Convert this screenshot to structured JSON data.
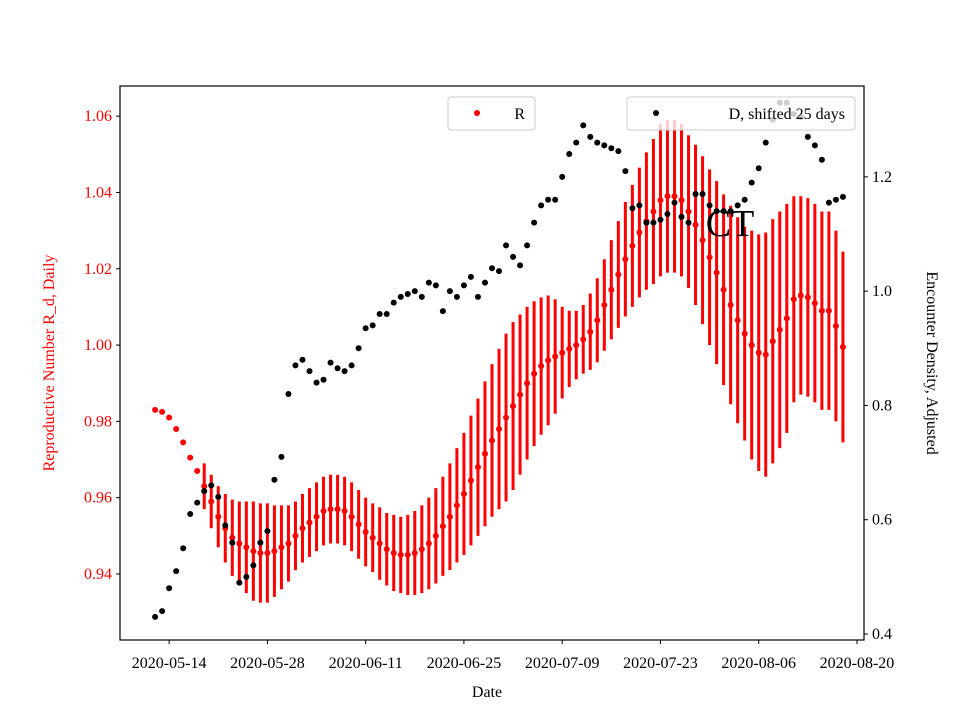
{
  "chart_data": {
    "type": "errorbar_dual",
    "x_label": "Date",
    "y_label": "Reproductive Number R_d, Daily",
    "y2_label": "Encounter Density, Adjusted",
    "annotation": "CT",
    "x": [
      "2020-05-12",
      "2020-05-13",
      "2020-05-14",
      "2020-05-15",
      "2020-05-16",
      "2020-05-17",
      "2020-05-18",
      "2020-05-19",
      "2020-05-20",
      "2020-05-21",
      "2020-05-22",
      "2020-05-23",
      "2020-05-24",
      "2020-05-25",
      "2020-05-26",
      "2020-05-27",
      "2020-05-28",
      "2020-05-29",
      "2020-05-30",
      "2020-05-31",
      "2020-06-01",
      "2020-06-02",
      "2020-06-03",
      "2020-06-04",
      "2020-06-05",
      "2020-06-06",
      "2020-06-07",
      "2020-06-08",
      "2020-06-09",
      "2020-06-10",
      "2020-06-11",
      "2020-06-12",
      "2020-06-13",
      "2020-06-14",
      "2020-06-15",
      "2020-06-16",
      "2020-06-17",
      "2020-06-18",
      "2020-06-19",
      "2020-06-20",
      "2020-06-21",
      "2020-06-22",
      "2020-06-23",
      "2020-06-24",
      "2020-06-25",
      "2020-06-26",
      "2020-06-27",
      "2020-06-28",
      "2020-06-29",
      "2020-06-30",
      "2020-07-01",
      "2020-07-02",
      "2020-07-03",
      "2020-07-04",
      "2020-07-05",
      "2020-07-06",
      "2020-07-07",
      "2020-07-08",
      "2020-07-09",
      "2020-07-10",
      "2020-07-11",
      "2020-07-12",
      "2020-07-13",
      "2020-07-14",
      "2020-07-15",
      "2020-07-16",
      "2020-07-17",
      "2020-07-18",
      "2020-07-19",
      "2020-07-20",
      "2020-07-21",
      "2020-07-22",
      "2020-07-23",
      "2020-07-24",
      "2020-07-25",
      "2020-07-26",
      "2020-07-27",
      "2020-07-28",
      "2020-07-29",
      "2020-07-30",
      "2020-07-31",
      "2020-08-01",
      "2020-08-02",
      "2020-08-03",
      "2020-08-04",
      "2020-08-05",
      "2020-08-06",
      "2020-08-07",
      "2020-08-08",
      "2020-08-09",
      "2020-08-10",
      "2020-08-11",
      "2020-08-12",
      "2020-08-13",
      "2020-08-14",
      "2020-08-15",
      "2020-08-16",
      "2020-08-17",
      "2020-08-18"
    ],
    "series": [
      {
        "name": "R",
        "color": "#ff0000",
        "axis": "y",
        "values": [
          0.983,
          0.9825,
          0.981,
          0.978,
          0.9745,
          0.9705,
          0.967,
          0.963,
          0.959,
          0.955,
          0.952,
          0.9495,
          0.948,
          0.947,
          0.946,
          0.9455,
          0.9455,
          0.946,
          0.947,
          0.948,
          0.95,
          0.952,
          0.9535,
          0.955,
          0.9565,
          0.957,
          0.957,
          0.9565,
          0.955,
          0.953,
          0.951,
          0.9495,
          0.948,
          0.9465,
          0.9455,
          0.945,
          0.945,
          0.9455,
          0.9465,
          0.948,
          0.95,
          0.9525,
          0.955,
          0.958,
          0.961,
          0.9645,
          0.968,
          0.9715,
          0.975,
          0.978,
          0.981,
          0.984,
          0.987,
          0.99,
          0.9925,
          0.9945,
          0.996,
          0.997,
          0.998,
          0.999,
          1.0,
          1.0015,
          1.0035,
          1.0065,
          1.0105,
          1.0145,
          1.0185,
          1.0225,
          1.026,
          1.0295,
          1.0325,
          1.035,
          1.038,
          1.039,
          1.039,
          1.038,
          1.035,
          1.0315,
          1.0275,
          1.023,
          1.019,
          1.0145,
          1.0105,
          1.0065,
          1.003,
          1.0,
          0.998,
          0.9975,
          1.001,
          1.004,
          1.007,
          1.012,
          1.013,
          1.0125,
          1.011,
          1.009,
          1.009,
          1.005,
          0.9995
        ],
        "errors": [
          0,
          0,
          0,
          0,
          0,
          0,
          0,
          0.006,
          0.007,
          0.008,
          0.009,
          0.01,
          0.011,
          0.012,
          0.013,
          0.013,
          0.013,
          0.012,
          0.011,
          0.01,
          0.009,
          0.009,
          0.009,
          0.009,
          0.009,
          0.009,
          0.009,
          0.009,
          0.009,
          0.009,
          0.009,
          0.009,
          0.0095,
          0.0095,
          0.01,
          0.01,
          0.0105,
          0.011,
          0.0115,
          0.012,
          0.0125,
          0.013,
          0.014,
          0.015,
          0.016,
          0.017,
          0.018,
          0.019,
          0.02,
          0.021,
          0.022,
          0.022,
          0.021,
          0.02,
          0.019,
          0.018,
          0.017,
          0.015,
          0.012,
          0.01,
          0.009,
          0.009,
          0.01,
          0.011,
          0.012,
          0.013,
          0.014,
          0.015,
          0.016,
          0.017,
          0.018,
          0.019,
          0.02,
          0.02,
          0.02,
          0.02,
          0.02,
          0.021,
          0.022,
          0.023,
          0.024,
          0.025,
          0.026,
          0.027,
          0.028,
          0.03,
          0.031,
          0.032,
          0.032,
          0.031,
          0.03,
          0.027,
          0.026,
          0.026,
          0.026,
          0.026,
          0.026,
          0.025,
          0.025
        ]
      },
      {
        "name": "D, shifted 25 days",
        "color": "#000000",
        "axis": "y2",
        "values": [
          0.43,
          0.44,
          0.48,
          0.51,
          0.55,
          0.61,
          0.63,
          0.65,
          0.66,
          0.64,
          0.59,
          0.56,
          0.49,
          0.5,
          0.52,
          0.56,
          0.58,
          0.67,
          0.71,
          0.82,
          0.87,
          0.88,
          0.86,
          0.84,
          0.845,
          0.875,
          0.865,
          0.86,
          0.87,
          0.9,
          0.935,
          0.94,
          0.96,
          0.96,
          0.98,
          0.99,
          0.995,
          1.0,
          0.99,
          1.015,
          1.01,
          0.965,
          1.0,
          0.99,
          1.01,
          1.025,
          0.99,
          1.015,
          1.04,
          1.035,
          1.08,
          1.06,
          1.045,
          1.08,
          1.12,
          1.15,
          1.16,
          1.16,
          1.2,
          1.24,
          1.26,
          1.29,
          1.27,
          1.26,
          1.255,
          1.25,
          1.245,
          1.21,
          1.145,
          1.15,
          1.12,
          1.12,
          1.125,
          1.135,
          1.155,
          1.13,
          1.12,
          1.17,
          1.17,
          1.15,
          1.14,
          1.14,
          1.14,
          1.15,
          1.16,
          1.19,
          1.215,
          1.26,
          1.3,
          1.33,
          1.33,
          1.31,
          1.305,
          1.27,
          1.255,
          1.23,
          1.155,
          1.16,
          1.165
        ]
      }
    ],
    "xlim": [
      "2020-05-07",
      "2020-08-21"
    ],
    "xticks": [
      "2020-05-14",
      "2020-05-28",
      "2020-06-11",
      "2020-06-25",
      "2020-07-09",
      "2020-07-23",
      "2020-08-06",
      "2020-08-20"
    ],
    "ylim": [
      0.9227,
      1.0679
    ],
    "yticks": [
      0.94,
      0.96,
      0.98,
      {
        "value": 1,
        "label": "1.00"
      },
      1.02,
      1.04,
      1.06
    ],
    "y2lim": [
      0.3895,
      1.359
    ],
    "y2ticks": [
      0.4,
      0.6,
      0.8,
      {
        "value": 1,
        "label": "1.0"
      },
      1.2
    ]
  }
}
